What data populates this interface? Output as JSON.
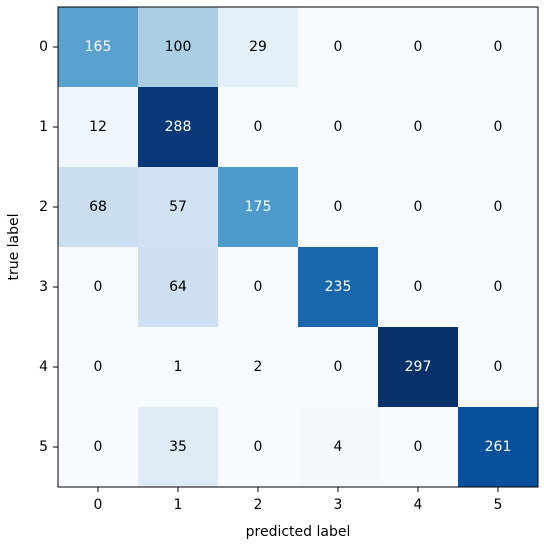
{
  "chart_data": {
    "type": "heatmap",
    "x_label": "predicted label",
    "y_label": "true label",
    "x_categories": [
      "0",
      "1",
      "2",
      "3",
      "4",
      "5"
    ],
    "y_categories": [
      "0",
      "1",
      "2",
      "3",
      "4",
      "5"
    ],
    "values": [
      [
        165,
        100,
        29,
        0,
        0,
        0
      ],
      [
        12,
        288,
        0,
        0,
        0,
        0
      ],
      [
        68,
        57,
        175,
        0,
        0,
        0
      ],
      [
        0,
        64,
        0,
        235,
        0,
        0
      ],
      [
        0,
        1,
        2,
        0,
        297,
        0
      ],
      [
        0,
        35,
        0,
        4,
        0,
        261
      ]
    ],
    "cmap": "Blues"
  }
}
